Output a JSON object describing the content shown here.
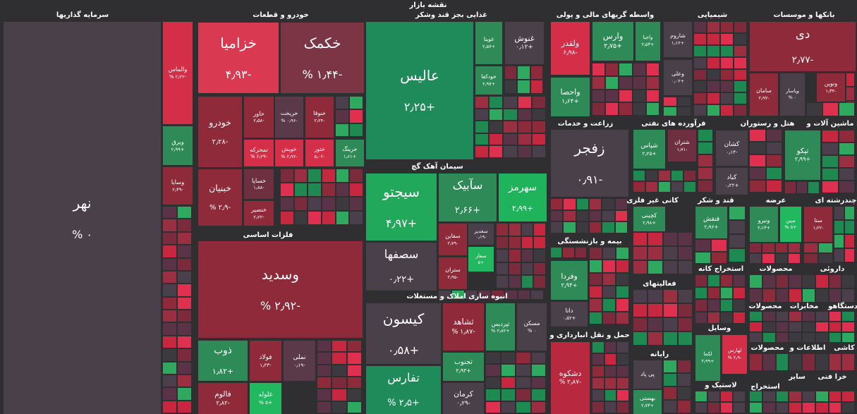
{
  "header": {
    "title": "نقشه بازار"
  },
  "sectors": [
    {
      "title": "سرمایه گذاریها",
      "tiles": [
        {
          "name": "نهر",
          "change": "۰ %",
          "color": "#4a4049"
        },
        {
          "name": "والماس",
          "change": "-۲٫۲۲ %",
          "color": "#d42e48"
        },
        {
          "name": "ویرق",
          "change": "+۲٫۹۹",
          "color": "#2e8b57"
        },
        {
          "name": "وسایا",
          "change": "-۲٫۴۹",
          "color": "#8e2a3a"
        }
      ]
    },
    {
      "title": "خودرو و قطعات",
      "tiles": [
        {
          "name": "خزامیا",
          "change": "-۴٫۹۳",
          "color": "#d93a52"
        },
        {
          "name": "خکمک",
          "change": "-۱٫۴۴ %",
          "color": "#7b3545"
        },
        {
          "name": "خودرو",
          "change": "-۲٫۲۸",
          "color": "#8e2a3a"
        },
        {
          "name": "خاور",
          "change": "-۲٫۵۸",
          "color": "#8e2a3a"
        },
        {
          "name": "خریخت",
          "change": "-۰٫۹۶ %",
          "color": "#5a3a48"
        },
        {
          "name": "خنوقا",
          "change": "-۲٫۲۴",
          "color": "#8e2a3a"
        },
        {
          "name": "تمحرکه",
          "change": "-۶٫۲۹ %",
          "color": "#d42e48"
        },
        {
          "name": "خویش",
          "change": "-۲٫۹۷ %",
          "color": "#d42e48"
        },
        {
          "name": "ختور",
          "change": "-۵٫۰۲",
          "color": "#d42e48"
        },
        {
          "name": "خرینگ",
          "change": "+۱٫۶۱",
          "color": "#2e8b57"
        },
        {
          "name": "خبنیان",
          "change": "-۲٫۹ %",
          "color": "#8e2a3a"
        },
        {
          "name": "خساپا",
          "change": "-۱٫۸۸",
          "color": "#6e2f40"
        },
        {
          "name": "خنصیر",
          "change": "-۲٫۲۲",
          "color": "#8e2a3a"
        }
      ]
    },
    {
      "title": "فلزات اساسی",
      "tiles": [
        {
          "name": "وسدید",
          "change": "-۲٫۹۲ %",
          "color": "#8e2a3a"
        },
        {
          "name": "ذوب",
          "change": "+۱٫۸۲",
          "color": "#2e8b57"
        },
        {
          "name": "فولاد",
          "change": "-۱٫۲۳",
          "color": "#8e2a3a"
        },
        {
          "name": "نملی",
          "change": "-۰٫۱۹",
          "color": "#5a3a48"
        },
        {
          "name": "فالوم",
          "change": "-۲٫۸۲",
          "color": "#8e2a3a"
        },
        {
          "name": "غلوله",
          "change": "+۵ %",
          "color": "#22b85f"
        }
      ]
    },
    {
      "title": "غذایی بجز قند وشکر",
      "tiles": [
        {
          "name": "عالیس",
          "change": "+۲٫۲۵",
          "color": "#1f8a5a"
        },
        {
          "name": "غویتا",
          "change": "+۲٫۵۷",
          "color": "#2e8b57"
        },
        {
          "name": "غنوش",
          "change": "+۰٫۱۲",
          "color": "#4a4049"
        },
        {
          "name": "خودکفا",
          "change": "+۲٫۹۷",
          "color": "#2e8b57"
        }
      ]
    },
    {
      "title": "سیمان آهک گچ",
      "tiles": [
        {
          "name": "سیجتو",
          "change": "+۴٫۹۷",
          "color": "#22a85a"
        },
        {
          "name": "سآبیک",
          "change": "+۲٫۶۶",
          "color": "#2e8b57"
        },
        {
          "name": "سهرمز",
          "change": "+۲٫۹۹",
          "color": "#1fb35c"
        },
        {
          "name": "سصفها",
          "change": "+۰٫۲۲",
          "color": "#4a4049"
        },
        {
          "name": "سفاین",
          "change": "-۲٫۷۹",
          "color": "#8e2a3a"
        },
        {
          "name": "سغدیر",
          "change": "-۰٫۱۹",
          "color": "#4a4049"
        },
        {
          "name": "سفار",
          "change": "+۵",
          "color": "#22b85f"
        },
        {
          "name": "ستران",
          "change": "-۲٫۹۵",
          "color": "#8e2a3a"
        }
      ]
    },
    {
      "title": "انبوه سازی املاک و مستغلات",
      "tiles": [
        {
          "name": "کیسون",
          "change": "+۰٫۵۸",
          "color": "#4a4049"
        },
        {
          "name": "تفارس",
          "change": "+۲٫۵ %",
          "color": "#1f8a5a"
        },
        {
          "name": "ثشاهد",
          "change": "-۱٫۸۷ %",
          "color": "#8e2a3a"
        },
        {
          "name": "ثپردیس",
          "change": "+۲٫۸۲ %",
          "color": "#2e8b57"
        },
        {
          "name": "مسکن",
          "change": "۰ %",
          "color": "#4a4049"
        },
        {
          "name": "ثجنوب",
          "change": "+۲٫۹۳",
          "color": "#2e8b57"
        },
        {
          "name": "کرمان",
          "change": "-۰٫۲۹",
          "color": "#4a4049"
        }
      ]
    },
    {
      "title": "واسطه گریهای مالی و پولی",
      "tiles": [
        {
          "name": "ولقدر",
          "change": "-۶٫۹۸",
          "color": "#d42e48"
        },
        {
          "name": "وارس",
          "change": "+۲٫۷۵",
          "color": "#2e8b57"
        },
        {
          "name": "واجیا",
          "change": "+۲٫۵۳",
          "color": "#2e8b57"
        },
        {
          "name": "واحصا",
          "change": "+۱٫۶۴",
          "color": "#2e8b57"
        }
      ]
    },
    {
      "title": "زراعت و خدمات",
      "tiles": [
        {
          "name": "زفجر",
          "change": "-۰٫۹۱",
          "color": "#4a4049"
        }
      ]
    },
    {
      "title": "بیمه و بازنشستگی",
      "tiles": [
        {
          "name": "وفردا",
          "change": "+۲٫۹۴",
          "color": "#2e8b57"
        },
        {
          "name": "داتا",
          "change": "+۰٫۵۲",
          "color": "#4a4049"
        }
      ]
    },
    {
      "title": "حمل و نقل انبارداری و",
      "tiles": [
        {
          "name": "دشکوه",
          "change": "-۲٫۸۷ %",
          "color": "#b8283f"
        }
      ]
    },
    {
      "title": "شیمیایی",
      "tiles": [
        {
          "name": "شاروم",
          "change": "+۱٫۱۲",
          "color": "#4a4049"
        },
        {
          "name": "وعلی",
          "change": "+۰٫۰۲",
          "color": "#4a4049"
        }
      ]
    },
    {
      "title": "بانکها و موسسات",
      "tiles": [
        {
          "name": "دی",
          "change": "-۲٫۷۷",
          "color": "#8e2a3a"
        },
        {
          "name": "سامان",
          "change": "-۲٫۹۷",
          "color": "#8e2a3a"
        },
        {
          "name": "وپاسار",
          "change": "۰ %",
          "color": "#4a4049"
        },
        {
          "name": "ونوین",
          "change": "-۱٫۳۴",
          "color": "#8e2a3a"
        }
      ]
    },
    {
      "title": "فرآورده های نفتی",
      "tiles": [
        {
          "name": "شپاس",
          "change": "+۲٫۲۵",
          "color": "#2e8b57"
        },
        {
          "name": "شتران",
          "change": "-۱٫۷۱",
          "color": "#6e2f40"
        }
      ]
    },
    {
      "tiles": [
        {
          "name": "کشان",
          "change": "-۰٫۱۴",
          "color": "#4a4049"
        },
        {
          "name": "کباد",
          "change": "+۰٫۲۲",
          "color": "#4a4049"
        }
      ]
    },
    {
      "title": "هتل و رستوران",
      "tiles": []
    },
    {
      "title": "ماشین آلات و",
      "tiles": [
        {
          "name": "تیکو",
          "change": "+۲٫۹۹",
          "color": "#2e8b57"
        }
      ]
    },
    {
      "title": "کانی غیر فلزی",
      "tiles": [
        {
          "name": "کچینی",
          "change": "+۲٫۹۸",
          "color": "#2e8b57"
        }
      ]
    },
    {
      "title": "قند و شکر",
      "tiles": [
        {
          "name": "قنقش",
          "change": "+۲٫۹۶",
          "color": "#2e8b57"
        }
      ]
    },
    {
      "title": "عرضه",
      "tiles": [
        {
          "name": "ونیرو",
          "change": "+۲٫۱۳",
          "color": "#2e8b57"
        },
        {
          "name": "مبین",
          "change": "+۵ %",
          "color": "#22b85f"
        }
      ]
    },
    {
      "title": "چندرشته ای",
      "tiles": [
        {
          "name": "ستا",
          "change": "-۱٫۲۲",
          "color": "#8e2a3a"
        }
      ]
    },
    {
      "title": "فعالیتهای",
      "tiles": []
    },
    {
      "title": "استخراج کانه",
      "tiles": []
    },
    {
      "title": "محصولات",
      "tiles": []
    },
    {
      "title": "داروئی",
      "tiles": []
    },
    {
      "title": "محصولات",
      "tiles": []
    },
    {
      "title": "مخابرات",
      "tiles": []
    },
    {
      "title": "دستگاهو",
      "tiles": []
    },
    {
      "title": "وسایل",
      "tiles": [
        {
          "name": "لکما",
          "change": "+۲٫۹۹",
          "color": "#2e8b57"
        },
        {
          "name": "لهارس",
          "change": "-۲٫۹ %",
          "color": "#d42e48"
        }
      ]
    },
    {
      "title": "رایانه",
      "tiles": [
        {
          "name": "پی پاد",
          "color": "#4a4049"
        },
        {
          "name": "بهستی",
          "change": "+۲٫۷۳",
          "color": "#2e8b57"
        }
      ]
    },
    {
      "title": "لاستیک و",
      "tiles": []
    },
    {
      "title": "محصولات",
      "tiles": []
    },
    {
      "title": "اطلاعات و",
      "tiles": []
    },
    {
      "title": "کاشی",
      "tiles": []
    },
    {
      "title": "استخراج",
      "tiles": []
    },
    {
      "title": "سایر",
      "tiles": []
    },
    {
      "title": "خرا فنی",
      "tiles": []
    }
  ]
}
